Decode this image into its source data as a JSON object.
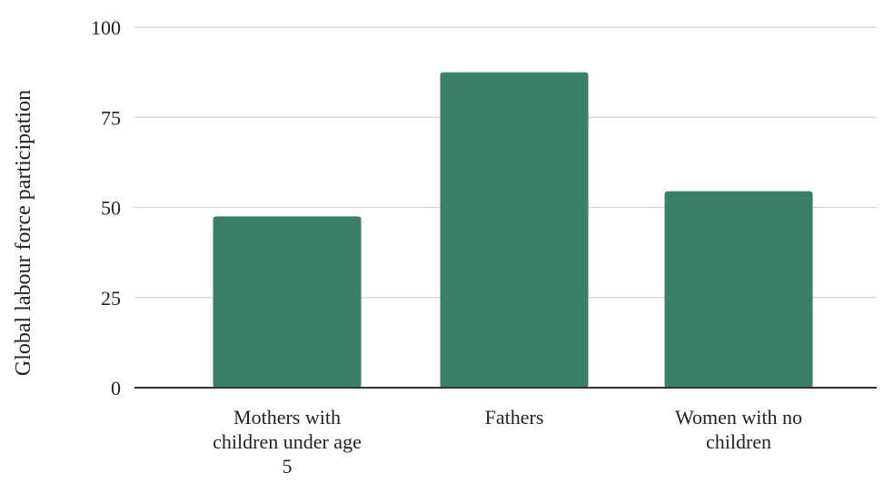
{
  "chart_data": {
    "type": "bar",
    "ylabel": "Global labour force participation",
    "xlabel": "",
    "ylim": [
      0,
      100
    ],
    "yticks": [
      0,
      25,
      50,
      75,
      100
    ],
    "categories": [
      [
        "Mothers with",
        "children under age",
        "5"
      ],
      [
        "Fathers"
      ],
      [
        "Women with no",
        "children"
      ]
    ],
    "values": [
      47.5,
      87.5,
      54.5
    ],
    "grid": true,
    "bar_color": "#3a7f68",
    "grid_color": "#d4d4d4",
    "axis_color": "#333333"
  }
}
